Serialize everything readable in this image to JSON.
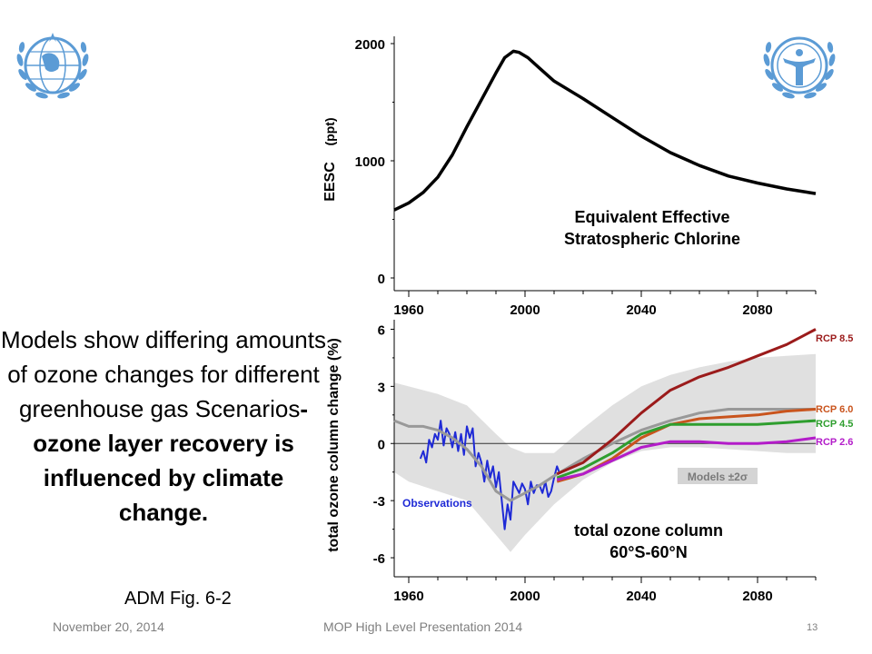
{
  "slide": {
    "body_text_regular": "Models show differing amounts of ozone changes for different greenhouse gas Scenarios",
    "body_text_bold": "- ozone layer recovery is influenced by climate change.",
    "caption": "ADM Fig. 6-2",
    "footer_date": "November 20, 2014",
    "footer_title": "MOP High Level Presentation 2014",
    "page_number": "13",
    "logos": [
      "wmo-emblem-icon",
      "unep-emblem-icon"
    ],
    "colors": {
      "logo_blue": "#5b9bd5",
      "footer_gray": "#7f7f7f"
    }
  },
  "chart_data": [
    {
      "type": "line",
      "ylabel": "EESC",
      "ylabel_unit": "(ppt)",
      "annotation_line1": "Equivalent Effective",
      "annotation_line2": "Stratospheric Chlorine",
      "xlim": [
        1955,
        2100
      ],
      "ylim": [
        0,
        2000
      ],
      "xticks": [
        1960,
        2000,
        2040,
        2080
      ],
      "yticks": [
        0,
        1000,
        2000
      ],
      "series": [
        {
          "color": "#000000",
          "x": [
            1955,
            1960,
            1965,
            1970,
            1975,
            1980,
            1985,
            1990,
            1993,
            1996,
            1998,
            2001,
            2005,
            2010,
            2020,
            2030,
            2040,
            2050,
            2060,
            2070,
            2080,
            2090,
            2100
          ],
          "y": [
            580,
            640,
            730,
            860,
            1050,
            1290,
            1520,
            1750,
            1880,
            1935,
            1925,
            1880,
            1790,
            1680,
            1530,
            1370,
            1210,
            1070,
            960,
            870,
            810,
            760,
            720
          ]
        }
      ]
    },
    {
      "type": "line",
      "ylabel": "total ozone column change (%)",
      "annotation_line1": "total ozone column",
      "annotation_line2": "60°S-60°N",
      "xlim": [
        1955,
        2100
      ],
      "ylim": [
        -7,
        6.5
      ],
      "xticks": [
        1960,
        2000,
        2040,
        2080
      ],
      "yticks": [
        -6,
        -3,
        0,
        3,
        6
      ],
      "band_label": "Models ±2σ",
      "band": {
        "color": "#e0e0e0",
        "x": [
          1955,
          1960,
          1970,
          1980,
          1990,
          1995,
          2000,
          2010,
          2020,
          2030,
          2040,
          2050,
          2060,
          2070,
          2080,
          2090,
          2100
        ],
        "upper": [
          3.2,
          3.0,
          2.6,
          2.0,
          0.5,
          -0.2,
          -0.5,
          -0.5,
          0.8,
          2.0,
          3.0,
          3.6,
          4.0,
          4.3,
          4.5,
          4.6,
          4.7
        ],
        "lower": [
          -1.5,
          -2.0,
          -2.5,
          -3.0,
          -4.8,
          -5.7,
          -4.8,
          -3.2,
          -1.9,
          -1.0,
          -0.4,
          -0.2,
          -0.2,
          -0.3,
          -0.4,
          -0.5,
          -0.5
        ]
      },
      "series": [
        {
          "name": "Observations",
          "color": "#1f2ad6",
          "x": [
            1964,
            1965,
            1966,
            1967,
            1968,
            1969,
            1970,
            1971,
            1972,
            1973,
            1974,
            1975,
            1976,
            1977,
            1978,
            1979,
            1980,
            1981,
            1982,
            1983,
            1984,
            1985,
            1986,
            1987,
            1988,
            1989,
            1990,
            1991,
            1992,
            1993,
            1994,
            1995,
            1996,
            1997,
            1998,
            1999,
            2000,
            2001,
            2002,
            2003,
            2004,
            2005,
            2006,
            2007,
            2008,
            2009,
            2010,
            2011,
            2012
          ],
          "y": [
            -0.8,
            -0.4,
            -1.0,
            0.2,
            -0.2,
            0.5,
            0.2,
            1.2,
            -0.1,
            0.8,
            0.5,
            -0.2,
            0.6,
            -0.4,
            0.5,
            -0.6,
            0.9,
            0.3,
            0.8,
            -1.2,
            -0.5,
            -1.0,
            -2.0,
            -0.9,
            -1.8,
            -1.2,
            -2.3,
            -1.5,
            -3.0,
            -4.5,
            -3.2,
            -4.0,
            -2.0,
            -2.3,
            -2.6,
            -2.1,
            -2.4,
            -3.2,
            -2.0,
            -2.6,
            -2.2,
            -2.2,
            -2.6,
            -2.0,
            -2.8,
            -2.5,
            -1.8,
            -1.2,
            -1.6
          ]
        },
        {
          "color": "#999999",
          "x": [
            1955,
            1960,
            1965,
            1970,
            1975,
            1980,
            1985,
            1990,
            1995,
            2000,
            2005,
            2010,
            2020,
            2030,
            2040,
            2050,
            2060,
            2070,
            2080,
            2090,
            2100
          ],
          "y": [
            1.2,
            0.9,
            0.9,
            0.7,
            0.3,
            -0.3,
            -1.2,
            -2.5,
            -3.0,
            -2.6,
            -2.2,
            -1.7,
            -0.8,
            0.0,
            0.7,
            1.2,
            1.6,
            1.8,
            1.8,
            1.8,
            1.8
          ]
        },
        {
          "name": "RCP 8.5",
          "color": "#9b1b1b",
          "x": [
            2011,
            2020,
            2030,
            2040,
            2050,
            2060,
            2070,
            2080,
            2090,
            2100
          ],
          "y": [
            -1.6,
            -1.0,
            0.2,
            1.6,
            2.8,
            3.5,
            4.0,
            4.6,
            5.2,
            6.0
          ]
        },
        {
          "name": "RCP 6.0",
          "color": "#c9541d",
          "x": [
            2011,
            2020,
            2030,
            2040,
            2050,
            2060,
            2070,
            2080,
            2090,
            2100
          ],
          "y": [
            -2.0,
            -1.6,
            -0.8,
            0.3,
            1.0,
            1.3,
            1.4,
            1.5,
            1.7,
            1.8
          ]
        },
        {
          "name": "RCP 4.5",
          "color": "#2e9e2e",
          "x": [
            2011,
            2020,
            2030,
            2040,
            2050,
            2060,
            2070,
            2080,
            2090,
            2100
          ],
          "y": [
            -1.8,
            -1.3,
            -0.5,
            0.5,
            1.0,
            1.0,
            1.0,
            1.0,
            1.1,
            1.2
          ]
        },
        {
          "name": "RCP 2.6",
          "color": "#b31cc9",
          "x": [
            2011,
            2020,
            2030,
            2040,
            2050,
            2060,
            2070,
            2080,
            2090,
            2100
          ],
          "y": [
            -1.9,
            -1.6,
            -0.9,
            -0.2,
            0.1,
            0.1,
            0.0,
            0.0,
            0.1,
            0.3
          ]
        }
      ]
    }
  ]
}
